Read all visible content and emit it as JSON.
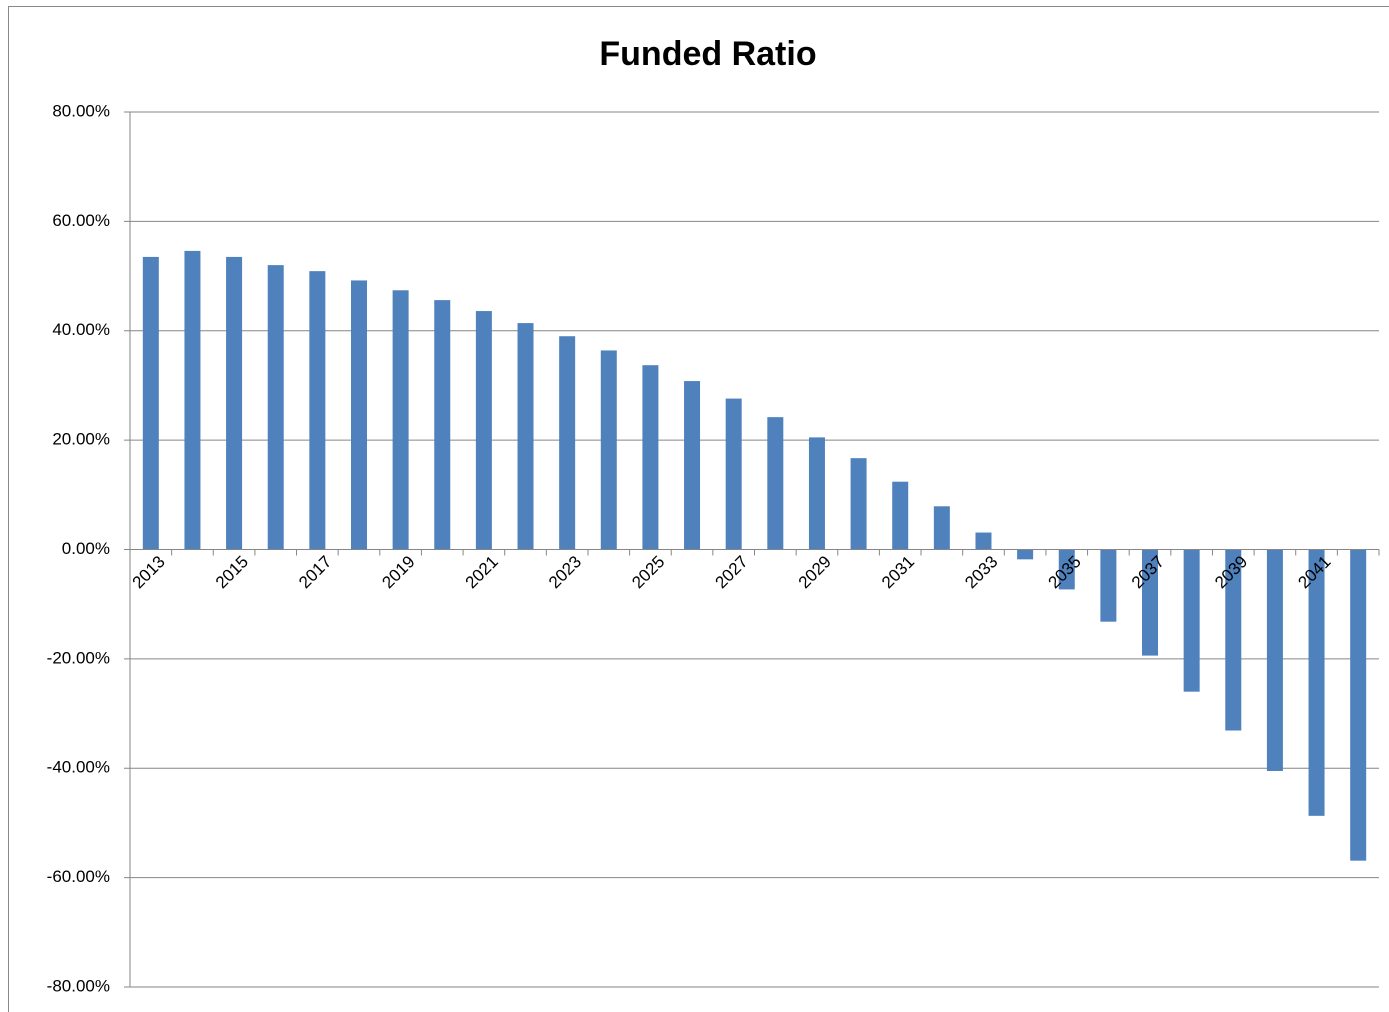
{
  "chart_data": {
    "type": "bar",
    "title": "Funded Ratio",
    "categories": [
      "2013",
      null,
      "2015",
      null,
      "2017",
      null,
      "2019",
      null,
      "2021",
      null,
      "2023",
      null,
      "2025",
      null,
      "2027",
      null,
      "2029",
      null,
      "2031",
      null,
      "2033",
      null,
      "2035",
      null,
      "2037",
      null,
      "2039",
      null,
      "2041",
      null
    ],
    "values": [
      53.5,
      54.6,
      53.5,
      52.0,
      50.9,
      49.2,
      47.4,
      45.6,
      43.6,
      41.4,
      39.0,
      36.4,
      33.7,
      30.8,
      27.6,
      24.2,
      20.5,
      16.7,
      12.4,
      7.9,
      3.1,
      -1.8,
      -7.3,
      -13.2,
      -19.4,
      -26.0,
      -33.1,
      -40.5,
      -48.7,
      -56.9
    ],
    "color": "#4f81bd",
    "ylim": [
      -80,
      80
    ],
    "yticks": [
      {
        "value": -80,
        "label": "-80.00%"
      },
      {
        "value": -60,
        "label": "-60.00%"
      },
      {
        "value": -40,
        "label": "-40.00%"
      },
      {
        "value": -20,
        "label": "-20.00%"
      },
      {
        "value": 0,
        "label": "0.00%"
      },
      {
        "value": 20,
        "label": "20.00%"
      },
      {
        "value": 40,
        "label": "40.00%"
      },
      {
        "value": 60,
        "label": "60.00%"
      },
      {
        "value": 80,
        "label": "80.00%"
      }
    ],
    "grid": true
  }
}
